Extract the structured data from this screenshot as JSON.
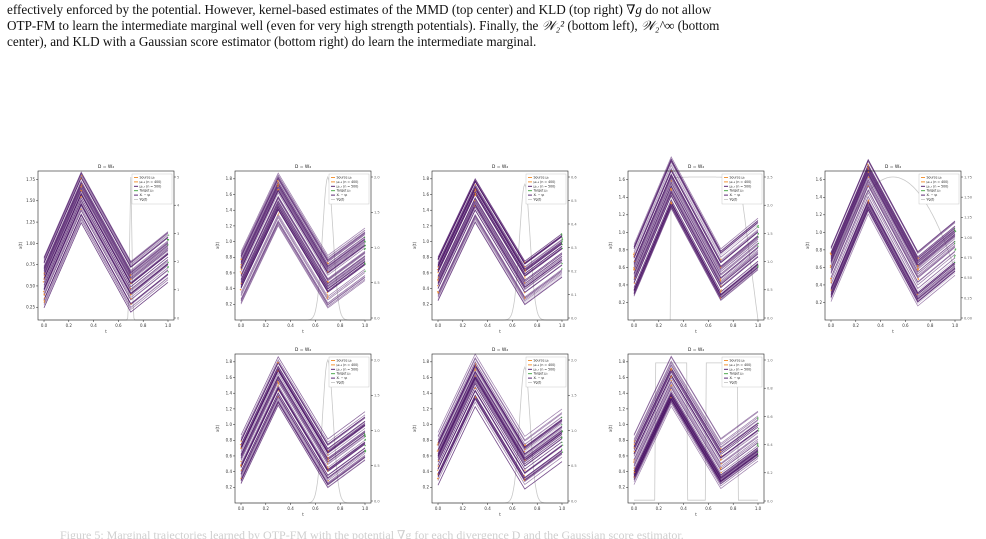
{
  "paragraph": {
    "l1a": "effectively enforced by the potential. However, kernel-based estimates of the MMD (top center) and KLD (top right) ",
    "l1b": "∇g",
    "l1c": " do not allow",
    "l2a": "OTP-FM to learn the intermediate marginal well (even for very high strength potentials). Finally, the ",
    "l2b": "𝒲₂²",
    "l2c": " (bottom left), ",
    "l2d": "𝒲₂^∞",
    "l2e": " (bottom",
    "l3": "center), and KLD with a Gaussian score estimator (bottom right) do learn the intermediate marginal."
  },
  "legend_entries": [
    "Source μ₀",
    "μ₀.₃ (n = 400)",
    "μ₀.₇ (n = 500)",
    "Target μ₁",
    "Xₜ − ψₜ",
    "∇g(t)"
  ],
  "chart_data": [
    {
      "type": "line",
      "title": "D = W₂",
      "xlabel": "t",
      "ylabel": "x(t)",
      "xlim": [
        0,
        1.0
      ],
      "ylim": [
        0.1,
        1.85
      ],
      "x_ticks": [
        "0.0",
        "0.2",
        "0.4",
        "0.6",
        "0.8",
        "1.0"
      ],
      "y_ticks": [
        "0.25",
        "0.50",
        "0.75",
        "1.00",
        "1.25",
        "1.50",
        "1.75"
      ],
      "right_ticks": [
        "5",
        "4",
        "3",
        "2",
        "1",
        "0"
      ],
      "potential": "narrow-peak-0.7",
      "peak": 1.0
    },
    {
      "type": "line",
      "title": "D = W₂",
      "xlabel": "t",
      "ylabel": "x(t)",
      "xlim": [
        0,
        1.0
      ],
      "ylim": [
        0,
        1.9
      ],
      "x_ticks": [
        "0.0",
        "0.2",
        "0.4",
        "0.6",
        "0.8",
        "1.0"
      ],
      "y_ticks": [
        "0.2",
        "0.4",
        "0.6",
        "0.8",
        "1.0",
        "1.2",
        "1.4",
        "1.6",
        "1.8"
      ],
      "right_ticks": [
        "2.0",
        "1.5",
        "1.0",
        "0.5",
        "0.0"
      ],
      "potential": "gauss-0.7",
      "peak": 1.0
    },
    {
      "type": "line",
      "title": "D = W₂",
      "xlabel": "t",
      "ylabel": "x(t)",
      "xlim": [
        0,
        1.0
      ],
      "ylim": [
        0,
        1.9
      ],
      "x_ticks": [
        "0.0",
        "0.2",
        "0.4",
        "0.6",
        "0.8",
        "1.0"
      ],
      "y_ticks": [
        "0.2",
        "0.4",
        "0.6",
        "0.8",
        "1.0",
        "1.2",
        "1.4",
        "1.6",
        "1.8"
      ],
      "right_ticks": [
        "0.6",
        "0.5",
        "0.4",
        "0.3",
        "0.2",
        "0.1",
        "0.0"
      ],
      "potential": "gauss-0.7",
      "peak": 0.95
    },
    {
      "type": "line",
      "title": "D = W₂",
      "xlabel": "t",
      "ylabel": "x(t)",
      "xlim": [
        0,
        1.0
      ],
      "ylim": [
        0,
        1.7
      ],
      "x_ticks": [
        "0.0",
        "0.2",
        "0.4",
        "0.6",
        "0.8",
        "1.0"
      ],
      "y_ticks": [
        "0.2",
        "0.4",
        "0.6",
        "0.8",
        "1.0",
        "1.2",
        "1.4",
        "1.6"
      ],
      "right_ticks": [
        "2.5",
        "2.0",
        "1.5",
        "1.0",
        "0.5",
        "0.0"
      ],
      "potential": "plateau-right",
      "peak": 1.0
    },
    {
      "type": "line",
      "title": "D = W₂",
      "xlabel": "t",
      "ylabel": "x(t)",
      "xlim": [
        0,
        1.0
      ],
      "ylim": [
        0,
        1.7
      ],
      "x_ticks": [
        "0.0",
        "0.2",
        "0.4",
        "0.6",
        "0.8",
        "1.0"
      ],
      "y_ticks": [
        "0.2",
        "0.4",
        "0.6",
        "0.8",
        "1.0",
        "1.2",
        "1.4",
        "1.6"
      ],
      "right_ticks": [
        "1.75",
        "1.50",
        "1.25",
        "1.00",
        "0.75",
        "0.50",
        "0.25",
        "0.00"
      ],
      "potential": "arch",
      "peak": 1.0
    },
    {
      "type": "line",
      "title": "D = W₂",
      "xlabel": "t",
      "ylabel": "x(t)",
      "xlim": [
        0,
        1.0
      ],
      "ylim": [
        0,
        1.9
      ],
      "x_ticks": [
        "0.0",
        "0.2",
        "0.4",
        "0.6",
        "0.8",
        "1.0"
      ],
      "y_ticks": [
        "0.2",
        "0.4",
        "0.6",
        "0.8",
        "1.0",
        "1.2",
        "1.4",
        "1.6",
        "1.8"
      ],
      "right_ticks": [
        "2.0",
        "1.5",
        "1.0",
        "0.5",
        "0.0"
      ],
      "potential": "gauss-0.7",
      "peak": 1.0
    },
    {
      "type": "line",
      "title": "D = W₂",
      "xlabel": "t",
      "ylabel": "x(t)",
      "xlim": [
        0,
        1.0
      ],
      "ylim": [
        0,
        1.9
      ],
      "x_ticks": [
        "0.0",
        "0.2",
        "0.4",
        "0.6",
        "0.8",
        "1.0"
      ],
      "y_ticks": [
        "0.2",
        "0.4",
        "0.6",
        "0.8",
        "1.0",
        "1.2",
        "1.4",
        "1.6",
        "1.8"
      ],
      "right_ticks": [
        "2.0",
        "1.5",
        "1.0",
        "0.5",
        "0.0"
      ],
      "potential": "gauss-0.7",
      "peak": 0.95
    },
    {
      "type": "line",
      "title": "D = W₂",
      "xlabel": "t",
      "ylabel": "x(t)",
      "xlim": [
        0,
        1.0
      ],
      "ylim": [
        0,
        1.9
      ],
      "x_ticks": [
        "0.0",
        "0.2",
        "0.4",
        "0.6",
        "0.8",
        "1.0"
      ],
      "y_ticks": [
        "0.2",
        "0.4",
        "0.6",
        "0.8",
        "1.0",
        "1.2",
        "1.4",
        "1.6",
        "1.8"
      ],
      "right_ticks": [
        "1.0",
        "0.8",
        "0.6",
        "0.4",
        "0.2",
        "0.0"
      ],
      "potential": "rect-0.3-0.7",
      "peak": 0.98
    }
  ],
  "colors": {
    "trajectory": "#4a1466",
    "source": "#f08a24",
    "target": "#3aa03a",
    "potential": "#c8c8c8"
  },
  "bottom_caption": "Figure 5: Marginal trajectories learned by OTP-FM with the potential ∇g for each divergence D and the Gaussian score estimator."
}
